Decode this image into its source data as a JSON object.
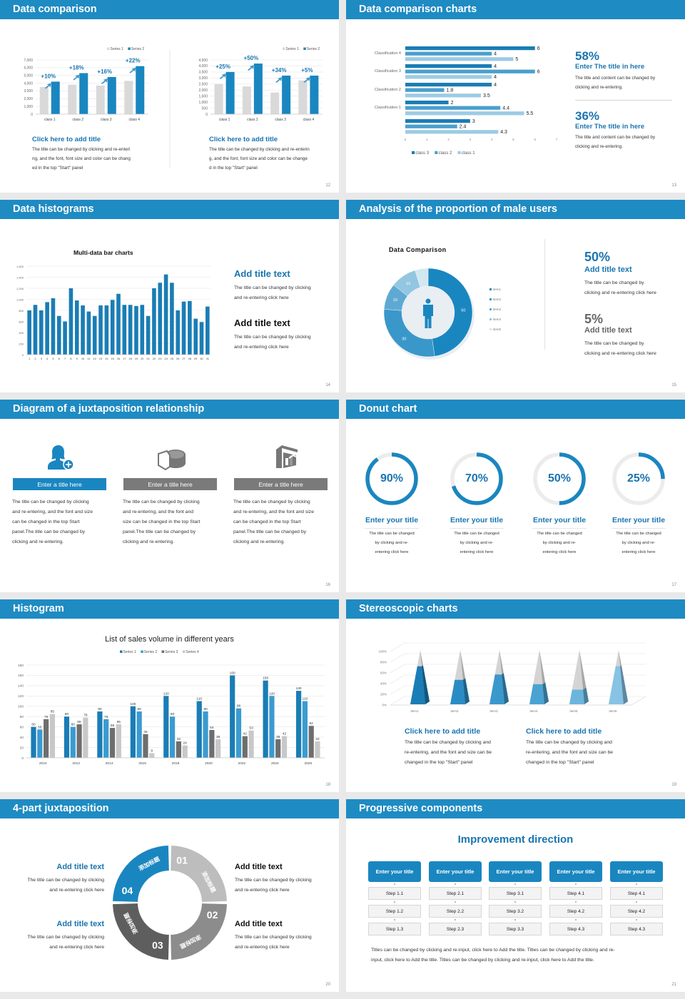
{
  "colors": {
    "header": "#1e8bc3",
    "accent": "#1a86c0",
    "title_text": "#1a75b0",
    "gray_bar": "#d9d9d9"
  },
  "slides": {
    "s12": {
      "title": "Data comparison",
      "page": "12",
      "left": {
        "caption_title": "Click here to add title",
        "lines": [
          "The title can be changed by clicking and re-enteri",
          "ng, and the font, font size and color can be chang",
          "ed in the top \"Start\" panel"
        ]
      },
      "right": {
        "caption_title": "Click here to add title",
        "lines": [
          "The title can be changed by clicking and re-enterin",
          "g, and the font, font size and color can be change",
          "d in the top \"Start\" panel"
        ]
      }
    },
    "s13": {
      "title": "Data comparison charts",
      "page": "13",
      "blocks": [
        {
          "pct": "58%",
          "heading": "Enter The title in here",
          "lines": [
            "The title and content can be changed by",
            "clicking and re-entering."
          ]
        },
        {
          "pct": "36%",
          "heading": "Enter The title in here",
          "lines": [
            "The title and content can be changed by",
            "clicking and re-entering."
          ]
        }
      ]
    },
    "s14": {
      "title": "Data histograms",
      "page": "14",
      "blocks": [
        {
          "heading": "Add title text",
          "lines": [
            "The title can be changed by clicking",
            "and re-entering click here"
          ]
        },
        {
          "heading": "Add title text",
          "lines": [
            "The title can be changed by clicking",
            "and re-entering click here"
          ]
        }
      ]
    },
    "s15": {
      "title": "Analysis of the proportion of male users",
      "page": "15",
      "blocks": [
        {
          "pct": "50%",
          "heading": "Add title text",
          "lines": [
            "The title can be changed by",
            "clicking and re-entering click here"
          ]
        },
        {
          "pct": "5%",
          "heading": "Add title text",
          "lines": [
            "The title can be changed by",
            "clicking and re-entering click here"
          ]
        }
      ]
    },
    "s16": {
      "title": "Diagram of a juxtaposition relationship",
      "page": "16",
      "columns": [
        {
          "icon": "user-add-icon",
          "button": "Enter a title here",
          "lines": [
            "The title can be changed by clicking",
            "and re-entering, and the font and size",
            "can be changed in the top Start",
            "panel.The title can be changed by",
            "clicking and re-entering."
          ]
        },
        {
          "icon": "pie-chart-icon",
          "button": "Enter a title here",
          "lines": [
            "The title can be changed by clicking",
            "and re-entering, and the font and",
            "size can be changed in the top Start",
            "panel.The title can be changed by",
            "clicking and re-entering."
          ]
        },
        {
          "icon": "building-chart-icon",
          "button": "Enter a title here",
          "lines": [
            "The title can be changed by clicking",
            "and re-entering, and the font and size",
            "can be changed in the top Start",
            "panel.The title can be changed by",
            "clicking and re-entering."
          ]
        }
      ]
    },
    "s17": {
      "title": "Donut chart",
      "page": "17",
      "items": [
        {
          "value": 90,
          "label": "90%",
          "heading": "Enter your title",
          "lines": [
            "The title can be changed",
            "by clicking and re-",
            "entering click here"
          ]
        },
        {
          "value": 70,
          "label": "70%",
          "heading": "Enter your title",
          "lines": [
            "The title can be changed",
            "by clicking and re-",
            "entering click here"
          ]
        },
        {
          "value": 50,
          "label": "50%",
          "heading": "Enter your title",
          "lines": [
            "The title can be changed",
            "by clicking and re-",
            "entering click here"
          ]
        },
        {
          "value": 25,
          "label": "25%",
          "heading": "Enter your title",
          "lines": [
            "The title can be changed",
            "by clicking and re-",
            "entering click here"
          ]
        }
      ]
    },
    "s18": {
      "title": "Histogram",
      "page": "18"
    },
    "s19": {
      "title": "Stereoscopic charts",
      "page": "19",
      "captions": [
        {
          "heading": "Click here to add title",
          "lines": [
            "The title can be changed by clicking and",
            "re-entering, and the font and size can be",
            "changed in the top \"Start\" panel"
          ]
        },
        {
          "heading": "Click here to add title",
          "lines": [
            "The title can be changed by clicking and",
            "re-entering, and the font and size can be",
            "changed in the top \"Start\" panel"
          ]
        }
      ]
    },
    "s20": {
      "title": "4-part juxtaposition",
      "page": "20",
      "segments": [
        {
          "num": "01",
          "text": "添加标题"
        },
        {
          "num": "02",
          "text": "添加标题"
        },
        {
          "num": "03",
          "text": "添加标题"
        },
        {
          "num": "04",
          "text": "添加标题"
        }
      ],
      "blocks": [
        {
          "heading": "Add title text",
          "lines": [
            "The title can be changed by clicking",
            "and re-entering click here"
          ]
        },
        {
          "heading": "Add title text",
          "lines": [
            "The title can be changed by clicking",
            "and re-entering click here"
          ]
        },
        {
          "heading": "Add title text",
          "lines": [
            "The title can be changed by clicking",
            "and re-entering click here"
          ]
        },
        {
          "heading": "Add title text",
          "lines": [
            "The title can be changed by clicking",
            "and re-entering click here"
          ]
        }
      ]
    },
    "s21": {
      "title": "Progressive components",
      "page": "21",
      "heading": "Improvement direction",
      "columns": [
        {
          "title": "Enter your title",
          "steps": [
            "Step 1.1",
            "Step 1.2",
            "Step 1.3"
          ]
        },
        {
          "title": "Enter your title",
          "steps": [
            "Step 2.1",
            "Step 2.2",
            "Step 2.3"
          ]
        },
        {
          "title": "Enter your title",
          "steps": [
            "Step 3.1",
            "Step 3.2",
            "Step 3.3"
          ]
        },
        {
          "title": "Enter your title",
          "steps": [
            "Step 4.1",
            "Step 4.2",
            "Step 4.3"
          ]
        },
        {
          "title": "Enter your title",
          "steps": [
            "Step 4.1",
            "Step 4.2",
            "Step 4.3"
          ]
        }
      ],
      "lines": [
        "Titles can be changed by clicking and re-input, click here to Add the title. Titles can be changed by clicking and re-",
        "input, click here to Add the title. Titles can be changed by clicking and re-input, click here to Add the title."
      ]
    }
  },
  "chart_data": [
    {
      "type": "bar",
      "categories": [
        "class 1",
        "class 2",
        "class 3",
        "class 4"
      ],
      "series": [
        {
          "name": "Series 1",
          "values": [
            3500,
            3800,
            3700,
            4300
          ],
          "color": "#d9d9d9"
        },
        {
          "name": "Series 2",
          "values": [
            4200,
            5300,
            4800,
            6200
          ],
          "color": "#1a86c0"
        }
      ],
      "annotations": [
        "+10%",
        "+18%",
        "+16%",
        "+22%"
      ],
      "ylim": [
        0,
        7000
      ],
      "yticks": [
        "0",
        "1,000",
        "2,000",
        "3,000",
        "4,000",
        "5,000",
        "6,000",
        "7,000"
      ],
      "legend": "top-right",
      "grid": true
    },
    {
      "type": "bar",
      "categories": [
        "class 1",
        "class 2",
        "class 3",
        "class 4"
      ],
      "series": [
        {
          "name": "Series 1",
          "values": [
            2500,
            2300,
            1800,
            2800
          ],
          "color": "#d9d9d9"
        },
        {
          "name": "Series 2",
          "values": [
            3500,
            4200,
            3200,
            3200
          ],
          "color": "#1a86c0"
        }
      ],
      "annotations": [
        "+25%",
        "+50%",
        "+34%",
        "+5%"
      ],
      "ylim": [
        0,
        4500
      ],
      "yticks": [
        "0",
        "500",
        "1,000",
        "1,500",
        "2,000",
        "2,500",
        "3,000",
        "3,500",
        "4,000",
        "4,500"
      ],
      "legend": "top-right",
      "grid": true
    },
    {
      "type": "bar",
      "orientation": "horizontal",
      "categories": [
        "Classification 4",
        "Classification 3",
        "Classification 2",
        "Classification 1",
        ""
      ],
      "series": [
        {
          "name": "class 3",
          "values": [
            6,
            4,
            4,
            2,
            3
          ],
          "color": "#1a7db5"
        },
        {
          "name": "class 2",
          "values": [
            4,
            6,
            1.8,
            4.4,
            2.4
          ],
          "color": "#4a9fcc"
        },
        {
          "name": "class 1",
          "values": [
            5,
            4,
            3.5,
            5.5,
            4.3
          ],
          "color": "#9ccbe3"
        }
      ],
      "xlim": [
        0,
        7
      ],
      "xticks": [
        "0",
        "1",
        "2",
        "3",
        "4",
        "5",
        "6",
        "7"
      ],
      "data_labels": true,
      "legend": "bottom"
    },
    {
      "type": "bar",
      "title": "Multi-data bar charts",
      "categories": [
        "1",
        "2",
        "3",
        "4",
        "5",
        "6",
        "7",
        "8",
        "9",
        "10",
        "11",
        "12",
        "13",
        "14",
        "15",
        "16",
        "17",
        "18",
        "19",
        "20",
        "21",
        "22",
        "23",
        "24",
        "25",
        "26",
        "27",
        "28",
        "29",
        "30",
        "31"
      ],
      "series": [
        {
          "values": [
            800,
            900,
            800,
            950,
            1020,
            700,
            600,
            1200,
            980,
            890,
            780,
            700,
            890,
            890,
            990,
            1100,
            900,
            900,
            880,
            900,
            700,
            1200,
            1300,
            1450,
            1300,
            800,
            960,
            970,
            650,
            590,
            870
          ],
          "color": "#1a7db5"
        }
      ],
      "ylim": [
        0,
        1600
      ],
      "yticks": [
        "0",
        "200",
        "400",
        "600",
        "800",
        "1,000",
        "1,200",
        "1,400",
        "1,600"
      ],
      "grid": true
    },
    {
      "type": "pie",
      "subtype": "donut",
      "title": "Data Comparison",
      "categories": [
        "item1",
        "item2",
        "item3",
        "item4",
        "item5"
      ],
      "values": [
        50,
        30,
        10,
        10,
        5
      ],
      "labels": [
        "50",
        "30",
        "10",
        "10",
        ""
      ],
      "colors": [
        "#1a86c0",
        "#3a97c9",
        "#5ea9d3",
        "#93c6e1",
        "#d3e7f1"
      ],
      "legend": "right"
    },
    {
      "type": "bar",
      "title": "List of sales volume in different years",
      "categories": [
        "2010",
        "2012",
        "2014",
        "2016",
        "2018",
        "2020",
        "2022",
        "2024",
        "2026"
      ],
      "series": [
        {
          "name": "Series 1",
          "values": [
            60,
            80,
            90,
            100,
            120,
            110,
            160,
            150,
            130
          ],
          "color": "#1a7db5"
        },
        {
          "name": "Series 2",
          "values": [
            55,
            60,
            75,
            90,
            80,
            90,
            96,
            120,
            110
          ],
          "color": "#3a9bd0"
        },
        {
          "name": "Series 3",
          "values": [
            75,
            65,
            58,
            46,
            32,
            54,
            42,
            36,
            62
          ],
          "color": "#6e6e6e"
        },
        {
          "name": "Series 4",
          "values": [
            85,
            78,
            65,
            9,
            24,
            36,
            53,
            42,
            32
          ],
          "color": "#c8c8c8"
        }
      ],
      "ylim": [
        0,
        180
      ],
      "yticks": [
        "0",
        "20",
        "40",
        "60",
        "80",
        "100",
        "120",
        "140",
        "160",
        "180"
      ],
      "data_labels": true,
      "legend": "top",
      "grid": true
    },
    {
      "type": "bar",
      "subtype": "3d-pyramid",
      "categories": [
        "item1",
        "item2",
        "item3",
        "item4",
        "item5",
        "item6"
      ],
      "values": [
        70,
        45,
        55,
        37,
        27,
        70
      ],
      "ylim": [
        0,
        100
      ],
      "yticks": [
        "0%",
        "20%",
        "40%",
        "60%",
        "80%",
        "100%"
      ],
      "colors": [
        "#1a7db5",
        "#2a8cc4",
        "#3a98cc",
        "#4aa3d3",
        "#6bb5dd",
        "#86c3e4"
      ],
      "grid": true
    }
  ]
}
